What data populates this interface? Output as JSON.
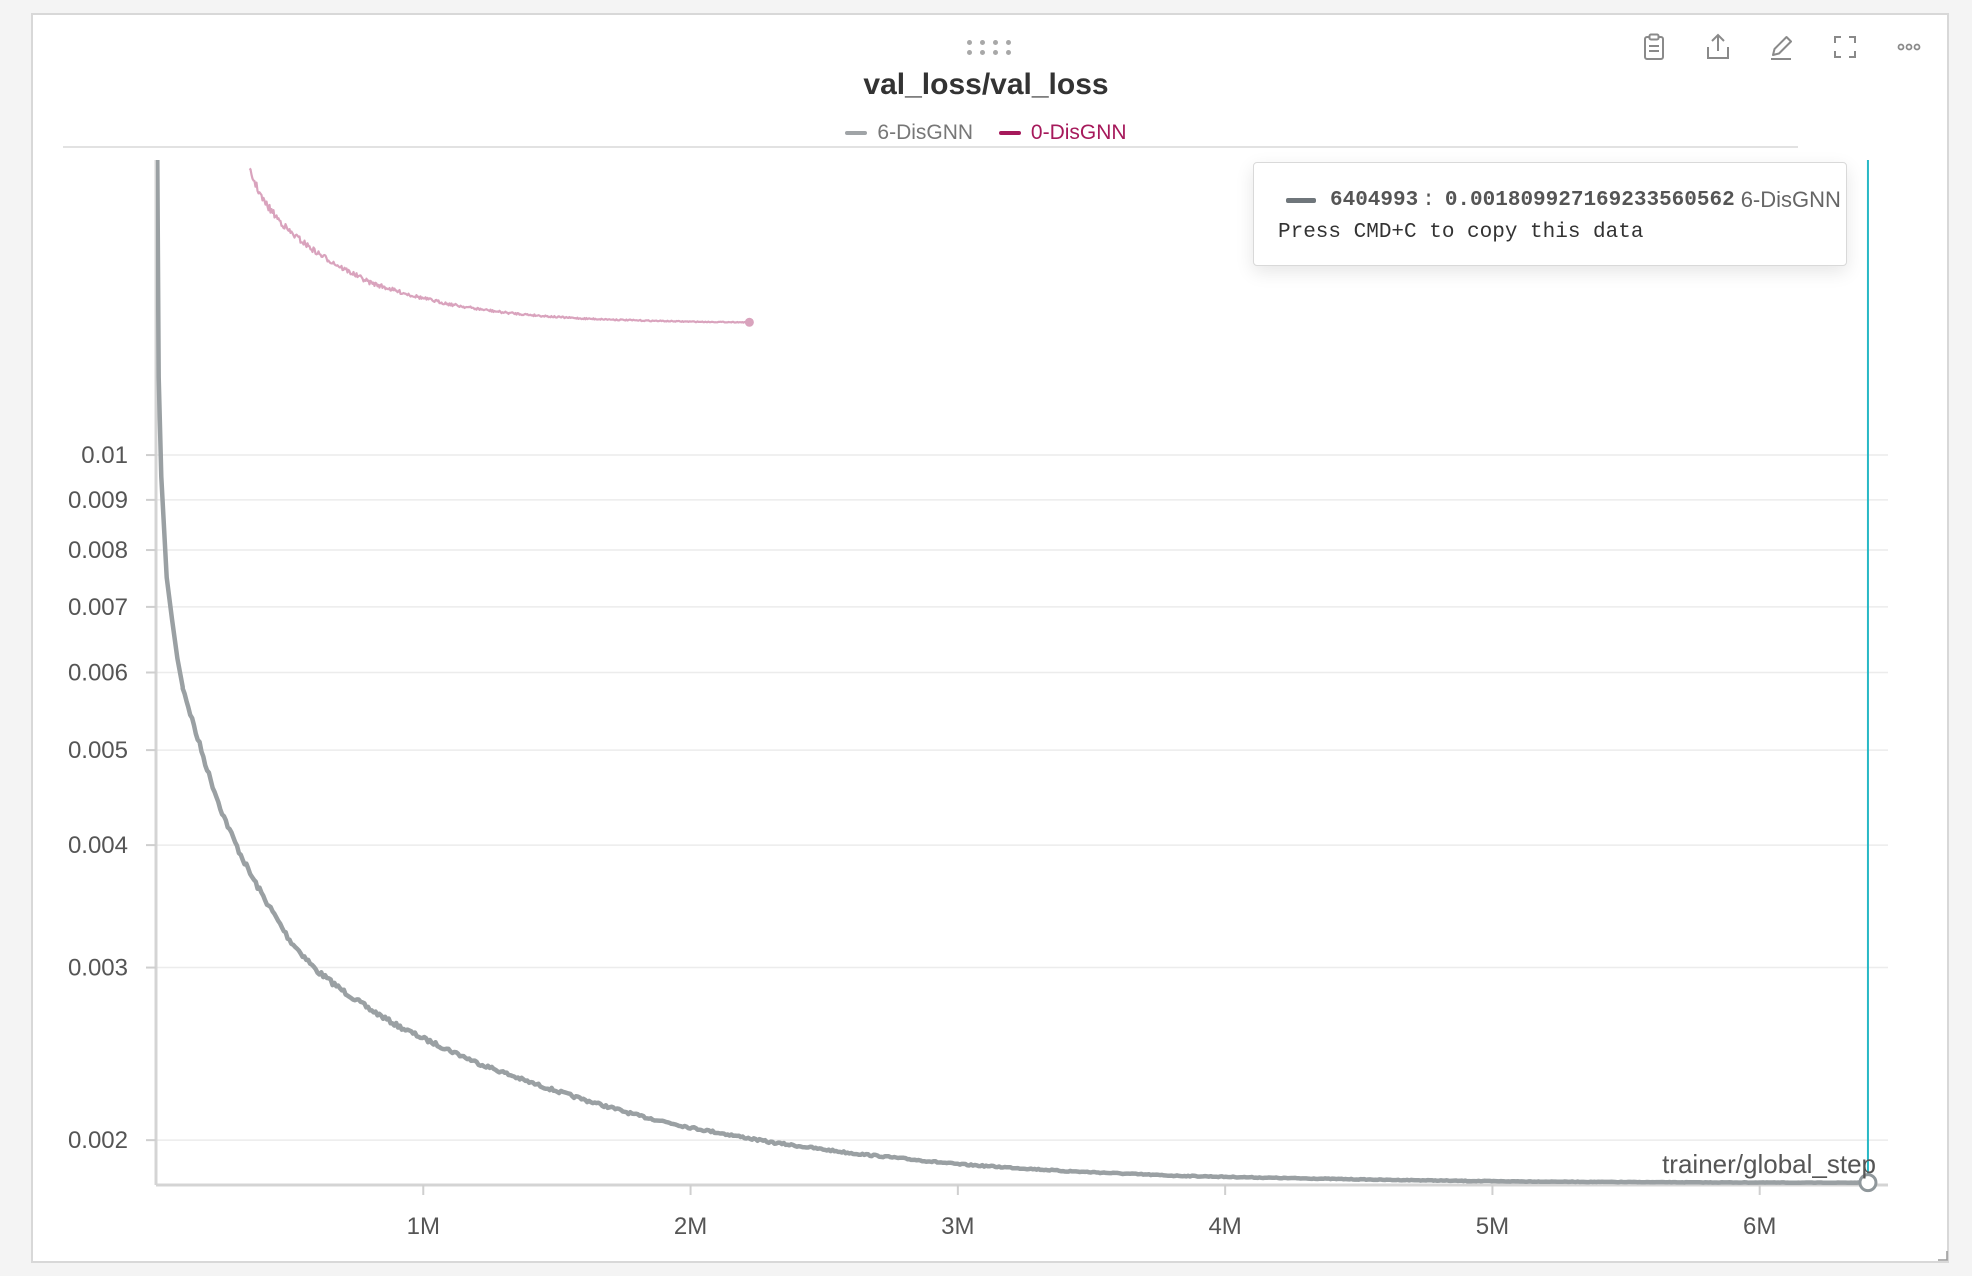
{
  "panel": {
    "title": "val_loss/val_loss",
    "toolbar": [
      {
        "name": "clipboard-icon",
        "label": "Copy"
      },
      {
        "name": "share-icon",
        "label": "Share"
      },
      {
        "name": "edit-icon",
        "label": "Edit"
      },
      {
        "name": "fullscreen-icon",
        "label": "Full screen"
      },
      {
        "name": "more-icon",
        "label": "More"
      }
    ]
  },
  "legend": [
    {
      "name": "6-DisGNN",
      "color": "#a0a4a7"
    },
    {
      "name": "0-DisGNN",
      "color": "#a6195b"
    }
  ],
  "tooltip": {
    "step": "6404993",
    "separator": ":",
    "value": "0.001809927169233560562",
    "series": "6-DisGNN",
    "hint": "Press CMD+C to copy this data"
  },
  "chart_data": {
    "type": "line",
    "title": "val_loss/val_loss",
    "xlabel": "trainer/global_step",
    "ylabel": "",
    "yscale": "log",
    "xlim": [
      0,
      6480000
    ],
    "ylim": [
      0.0018,
      0.02
    ],
    "x_ticks": [
      1000000,
      2000000,
      3000000,
      4000000,
      5000000,
      6000000
    ],
    "x_tick_labels": [
      "1M",
      "2M",
      "3M",
      "4M",
      "5M",
      "6M"
    ],
    "y_ticks": [
      0.002,
      0.003,
      0.004,
      0.005,
      0.006,
      0.007,
      0.008,
      0.009,
      0.01
    ],
    "y_tick_labels": [
      "0.002",
      "0.003",
      "0.004",
      "0.005",
      "0.006",
      "0.007",
      "0.008",
      "0.009",
      "0.01"
    ],
    "grid": true,
    "hover_step": 6404993,
    "series": [
      {
        "name": "6-DisGNN",
        "color": "#9aa0a3",
        "x": [
          0,
          5000,
          10000,
          20000,
          40000,
          60000,
          80000,
          100000,
          150000,
          200000,
          250000,
          300000,
          350000,
          400000,
          500000,
          600000,
          700000,
          800000,
          900000,
          1000000,
          1200000,
          1400000,
          1600000,
          1800000,
          2000000,
          2300000,
          2600000,
          3000000,
          3400000,
          3800000,
          4200000,
          4600000,
          5000000,
          5400000,
          5800000,
          6200000,
          6404993
        ],
        "y": [
          0.05,
          0.02,
          0.012,
          0.0095,
          0.0075,
          0.0068,
          0.0062,
          0.0058,
          0.0052,
          0.0047,
          0.0043,
          0.004,
          0.00375,
          0.00355,
          0.0032,
          0.00298,
          0.00284,
          0.00272,
          0.00262,
          0.00254,
          0.0024,
          0.00229,
          0.0022,
          0.00212,
          0.00206,
          0.00199,
          0.00194,
          0.00189,
          0.00186,
          0.00184,
          0.00183,
          0.001822,
          0.001816,
          0.001813,
          0.001811,
          0.00181,
          0.00181
        ]
      },
      {
        "name": "0-DisGNN",
        "color": "#d9a3bd",
        "x": [
          350000,
          400000,
          450000,
          500000,
          600000,
          700000,
          800000,
          900000,
          1000000,
          1100000,
          1200000,
          1300000,
          1400000,
          1500000,
          1600000,
          1800000,
          2000000,
          2200000,
          2220000
        ],
        "y": [
          0.0195,
          0.0182,
          0.0175,
          0.0169,
          0.0161,
          0.0155,
          0.015,
          0.0147,
          0.01445,
          0.01425,
          0.0141,
          0.01398,
          0.0139,
          0.01383,
          0.01378,
          0.01372,
          0.01368,
          0.01366,
          0.01366
        ]
      }
    ]
  }
}
